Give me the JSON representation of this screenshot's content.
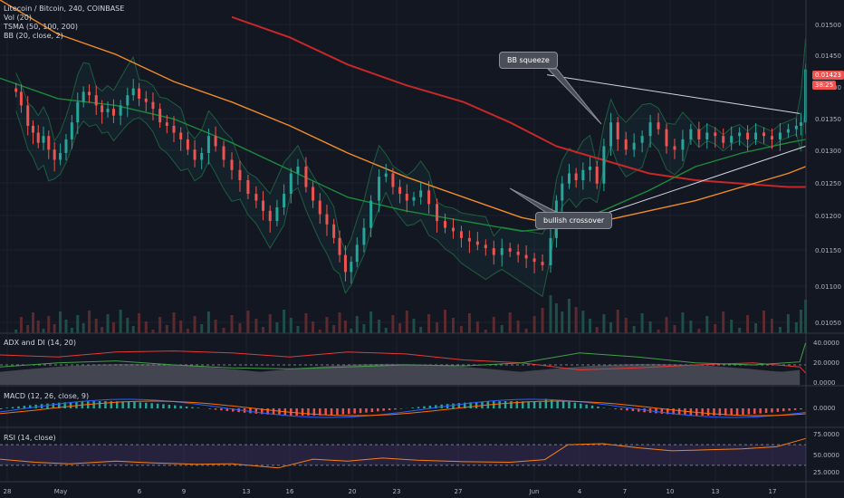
{
  "legend": {
    "symbol": "Litecoin / Bitcoin, 240, COINBASE",
    "vol": "Vol (20)",
    "tsma": "TSMA (50, 100, 200)",
    "bb": "BB (20, close, 2)"
  },
  "panes": {
    "adx": "ADX and DI (14, 20)",
    "macd": "MACD (12, 26, close, 9)",
    "rsi": "RSI (14, close)"
  },
  "annotations": {
    "squeeze": "BB squeeze",
    "crossover": "bullish crossover"
  },
  "last_price": {
    "value": "0.01423",
    "countdown": "38:25"
  },
  "colors": {
    "background": "#131722",
    "up": "#26a69a",
    "down": "#ef5350",
    "ma50": "#1b8a3a",
    "ma100": "#f28c28",
    "ma200": "#c62828",
    "bb": "#1e5c3f",
    "rsi": "#f57f17"
  },
  "chart_data": {
    "type": "candlestick",
    "x_tick_labels": [
      "28",
      "May",
      "6",
      "9",
      "13",
      "16",
      "20",
      "23",
      "27",
      "Jun",
      "4",
      "7",
      "10",
      "13",
      "17"
    ],
    "price_axis_labels": [
      "0.01500",
      "0.01450",
      "0.01400",
      "0.01350",
      "0.01300",
      "0.01250",
      "0.01200",
      "0.01150",
      "0.01100",
      "0.01050"
    ],
    "adx_axis_labels": [
      "40.0000",
      "20.0000",
      "0.0000"
    ],
    "macd_axis_labels": [
      "0.0000"
    ],
    "rsi_axis_labels": [
      "75.0000",
      "50.0000",
      "25.0000"
    ],
    "ylim_price": [
      0.01035,
      0.01525
    ],
    "close_path": [
      [
        0.0138,
        0.0139
      ],
      [
        0.0183,
        0.0137
      ],
      [
        0.024,
        0.0134
      ],
      [
        0.0285,
        0.0133
      ],
      [
        0.033,
        0.01315
      ],
      [
        0.0375,
        0.01325
      ],
      [
        0.042,
        0.01305
      ],
      [
        0.047,
        0.0129
      ],
      [
        0.052,
        0.013
      ],
      [
        0.057,
        0.0132
      ],
      [
        0.062,
        0.01345
      ],
      [
        0.067,
        0.01375
      ],
      [
        0.072,
        0.0139
      ],
      [
        0.077,
        0.01385
      ],
      [
        0.083,
        0.0137
      ],
      [
        0.088,
        0.0136
      ],
      [
        0.093,
        0.01365
      ],
      [
        0.098,
        0.01355
      ],
      [
        0.104,
        0.0137
      ],
      [
        0.11,
        0.01385
      ],
      [
        0.115,
        0.01395
      ],
      [
        0.12,
        0.0138
      ],
      [
        0.126,
        0.01375
      ],
      [
        0.132,
        0.01365
      ],
      [
        0.138,
        0.01345
      ],
      [
        0.144,
        0.0134
      ],
      [
        0.15,
        0.0133
      ],
      [
        0.156,
        0.0132
      ],
      [
        0.162,
        0.01305
      ],
      [
        0.168,
        0.0129
      ],
      [
        0.174,
        0.013
      ],
      [
        0.18,
        0.01325
      ],
      [
        0.186,
        0.0131
      ],
      [
        0.193,
        0.0129
      ],
      [
        0.2,
        0.01275
      ],
      [
        0.207,
        0.0126
      ],
      [
        0.214,
        0.0124
      ],
      [
        0.221,
        0.0123
      ],
      [
        0.227,
        0.01215
      ],
      [
        0.233,
        0.012
      ],
      [
        0.239,
        0.0122
      ],
      [
        0.245,
        0.0124
      ],
      [
        0.251,
        0.0127
      ],
      [
        0.257,
        0.0128
      ],
      [
        0.264,
        0.0125
      ],
      [
        0.27,
        0.0123
      ],
      [
        0.276,
        0.0121
      ],
      [
        0.282,
        0.01195
      ],
      [
        0.288,
        0.01175
      ],
      [
        0.293,
        0.0115
      ],
      [
        0.298,
        0.01125
      ],
      [
        0.303,
        0.0114
      ],
      [
        0.308,
        0.01165
      ],
      [
        0.314,
        0.0119
      ],
      [
        0.32,
        0.0123
      ],
      [
        0.327,
        0.01265
      ],
      [
        0.333,
        0.0127
      ],
      [
        0.339,
        0.0125
      ],
      [
        0.345,
        0.0124
      ],
      [
        0.351,
        0.0123
      ],
      [
        0.357,
        0.01235
      ],
      [
        0.363,
        0.01245
      ],
      [
        0.37,
        0.01225
      ],
      [
        0.377,
        0.012
      ],
      [
        0.384,
        0.0119
      ],
      [
        0.391,
        0.01185
      ],
      [
        0.398,
        0.01175
      ],
      [
        0.405,
        0.0117
      ],
      [
        0.412,
        0.01165
      ],
      [
        0.419,
        0.0116
      ],
      [
        0.426,
        0.0115
      ],
      [
        0.433,
        0.0116
      ],
      [
        0.44,
        0.01155
      ],
      [
        0.447,
        0.0115
      ],
      [
        0.454,
        0.01145
      ],
      [
        0.461,
        0.0114
      ],
      [
        0.468,
        0.01135
      ],
      [
        0.475,
        0.01175
      ],
      [
        0.48,
        0.0123
      ],
      [
        0.485,
        0.01255
      ],
      [
        0.491,
        0.0127
      ],
      [
        0.497,
        0.0126
      ],
      [
        0.503,
        0.01275
      ],
      [
        0.509,
        0.0128
      ],
      [
        0.515,
        0.01255
      ],
      [
        0.521,
        0.0131
      ],
      [
        0.527,
        0.01345
      ],
      [
        0.533,
        0.0132
      ],
      [
        0.54,
        0.01305
      ],
      [
        0.547,
        0.01315
      ],
      [
        0.554,
        0.01325
      ],
      [
        0.561,
        0.01345
      ],
      [
        0.568,
        0.01335
      ],
      [
        0.575,
        0.0131
      ],
      [
        0.582,
        0.01305
      ],
      [
        0.589,
        0.0132
      ],
      [
        0.596,
        0.01335
      ],
      [
        0.603,
        0.0132
      ],
      [
        0.61,
        0.0133
      ],
      [
        0.617,
        0.01325
      ],
      [
        0.624,
        0.01315
      ],
      [
        0.631,
        0.01325
      ],
      [
        0.638,
        0.0133
      ],
      [
        0.645,
        0.0132
      ],
      [
        0.652,
        0.0133
      ],
      [
        0.659,
        0.01325
      ],
      [
        0.666,
        0.0132
      ],
      [
        0.673,
        0.0133
      ],
      [
        0.68,
        0.01335
      ],
      [
        0.687,
        0.0134
      ],
      [
        0.691,
        0.01345
      ],
      [
        0.695,
        0.01423
      ]
    ],
    "ma50_path": [
      [
        0.0,
        0.0141
      ],
      [
        0.05,
        0.0138
      ],
      [
        0.1,
        0.0137
      ],
      [
        0.15,
        0.0135
      ],
      [
        0.2,
        0.01315
      ],
      [
        0.25,
        0.01275
      ],
      [
        0.3,
        0.01235
      ],
      [
        0.35,
        0.01215
      ],
      [
        0.4,
        0.012
      ],
      [
        0.45,
        0.01185
      ],
      [
        0.48,
        0.0119
      ],
      [
        0.52,
        0.01215
      ],
      [
        0.56,
        0.01245
      ],
      [
        0.6,
        0.0128
      ],
      [
        0.64,
        0.013
      ],
      [
        0.68,
        0.01315
      ],
      [
        0.695,
        0.0132
      ]
    ],
    "ma100_path": [
      [
        0.0,
        0.01525
      ],
      [
        0.05,
        0.01475
      ],
      [
        0.1,
        0.01445
      ],
      [
        0.15,
        0.01405
      ],
      [
        0.2,
        0.01375
      ],
      [
        0.25,
        0.0134
      ],
      [
        0.3,
        0.013
      ],
      [
        0.35,
        0.01265
      ],
      [
        0.4,
        0.01235
      ],
      [
        0.45,
        0.01205
      ],
      [
        0.48,
        0.01195
      ],
      [
        0.52,
        0.012
      ],
      [
        0.56,
        0.01215
      ],
      [
        0.6,
        0.0123
      ],
      [
        0.64,
        0.0125
      ],
      [
        0.68,
        0.0127
      ],
      [
        0.695,
        0.0128
      ]
    ],
    "ma200_path": [
      [
        0.2,
        0.015
      ],
      [
        0.25,
        0.0147
      ],
      [
        0.3,
        0.0143
      ],
      [
        0.35,
        0.014
      ],
      [
        0.4,
        0.01375
      ],
      [
        0.44,
        0.01345
      ],
      [
        0.48,
        0.0131
      ],
      [
        0.52,
        0.0129
      ],
      [
        0.56,
        0.0127
      ],
      [
        0.6,
        0.0126
      ],
      [
        0.64,
        0.01255
      ],
      [
        0.68,
        0.0125
      ],
      [
        0.695,
        0.0125
      ]
    ],
    "trendlines": [
      {
        "from": [
          0.472,
          0.01415
        ],
        "to": [
          0.69,
          0.01358
        ]
      },
      {
        "from": [
          0.494,
          0.01195
        ],
        "to": [
          0.695,
          0.0131
        ]
      }
    ],
    "adx_lines": {
      "plus_di": [
        [
          0.0,
          0.18
        ],
        [
          0.05,
          0.22
        ],
        [
          0.1,
          0.24
        ],
        [
          0.15,
          0.2
        ],
        [
          0.2,
          0.17
        ],
        [
          0.25,
          0.16
        ],
        [
          0.3,
          0.18
        ],
        [
          0.35,
          0.2
        ],
        [
          0.4,
          0.19
        ],
        [
          0.45,
          0.22
        ],
        [
          0.5,
          0.32
        ],
        [
          0.55,
          0.28
        ],
        [
          0.6,
          0.22
        ],
        [
          0.65,
          0.2
        ],
        [
          0.69,
          0.23
        ],
        [
          0.695,
          0.42
        ]
      ],
      "minus_di": [
        [
          0.0,
          0.3
        ],
        [
          0.05,
          0.28
        ],
        [
          0.1,
          0.33
        ],
        [
          0.15,
          0.34
        ],
        [
          0.2,
          0.32
        ],
        [
          0.25,
          0.28
        ],
        [
          0.3,
          0.33
        ],
        [
          0.35,
          0.31
        ],
        [
          0.4,
          0.25
        ],
        [
          0.45,
          0.22
        ],
        [
          0.5,
          0.15
        ],
        [
          0.55,
          0.17
        ],
        [
          0.6,
          0.2
        ],
        [
          0.65,
          0.22
        ],
        [
          0.69,
          0.18
        ],
        [
          0.695,
          0.12
        ]
      ]
    },
    "rsi": [
      [
        0.0,
        0.42
      ],
      [
        0.03,
        0.36
      ],
      [
        0.06,
        0.33
      ],
      [
        0.1,
        0.38
      ],
      [
        0.13,
        0.35
      ],
      [
        0.17,
        0.32
      ],
      [
        0.2,
        0.33
      ],
      [
        0.24,
        0.25
      ],
      [
        0.27,
        0.42
      ],
      [
        0.3,
        0.38
      ],
      [
        0.33,
        0.44
      ],
      [
        0.36,
        0.4
      ],
      [
        0.4,
        0.37
      ],
      [
        0.44,
        0.36
      ],
      [
        0.47,
        0.41
      ],
      [
        0.49,
        0.7
      ],
      [
        0.52,
        0.72
      ],
      [
        0.55,
        0.64
      ],
      [
        0.58,
        0.58
      ],
      [
        0.61,
        0.6
      ],
      [
        0.64,
        0.62
      ],
      [
        0.67,
        0.66
      ],
      [
        0.695,
        0.82
      ]
    ],
    "grid": true,
    "legend_position": "top-left"
  }
}
